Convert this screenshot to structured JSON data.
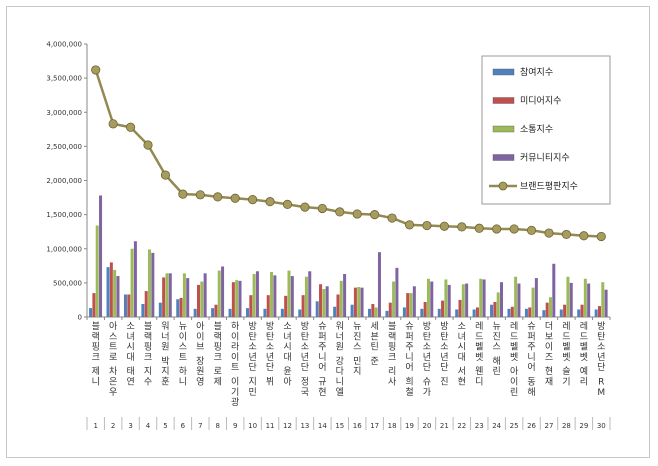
{
  "chart_data": {
    "type": "bar",
    "ylim": [
      0,
      4000000
    ],
    "yticks": [
      0,
      500000,
      1000000,
      1500000,
      2000000,
      2500000,
      3000000,
      3500000,
      4000000
    ],
    "ytick_labels": [
      "0",
      "500,000",
      "1,000,000",
      "1,500,000",
      "2,000,000",
      "2,500,000",
      "3,000,000",
      "3,500,000",
      "4,000,000"
    ],
    "legend_position": "top-right",
    "grid": false,
    "categories": [
      "블랙핑크 제니",
      "아스트로 차은우",
      "소녀시대 태연",
      "블랙핑크 지수",
      "워너원 박지훈",
      "뉴이스트 하니",
      "아이브 장원영",
      "블랙핑크 로제",
      "하이라이트 이기광",
      "방탄소년단 지민",
      "방탄소년단 뷔",
      "소녀시대 윤아",
      "방탄소년단 정국",
      "슈퍼주니어 규현",
      "워너원 강다니엘",
      "뉴진스 민지",
      "세븐틴 준",
      "블랙핑크 리사",
      "슈퍼주니어 희철",
      "방탄소년단 슈가",
      "방탄소년단 진",
      "소녀시대 서현",
      "레드벨벳 웬디",
      "뉴진스 해린",
      "레드벨벳 아이린",
      "슈퍼주니어 동해",
      "더보이즈 현재",
      "레드벨벳 슬기",
      "레드벨벳 예리",
      "방탄소년단 RM"
    ],
    "rank_labels": [
      "1",
      "2",
      "3",
      "4",
      "5",
      "6",
      "7",
      "8",
      "9",
      "10",
      "11",
      "12",
      "13",
      "14",
      "15",
      "16",
      "17",
      "18",
      "19",
      "20",
      "21",
      "22",
      "23",
      "24",
      "25",
      "26",
      "27",
      "28",
      "29",
      "30"
    ],
    "series": [
      {
        "name": "참여지수",
        "kind": "bar",
        "color": "#4f81bd",
        "values": [
          130000,
          730000,
          330000,
          190000,
          210000,
          260000,
          120000,
          130000,
          120000,
          130000,
          120000,
          120000,
          110000,
          230000,
          150000,
          180000,
          120000,
          90000,
          140000,
          120000,
          120000,
          110000,
          110000,
          180000,
          120000,
          120000,
          100000,
          110000,
          110000,
          110000
        ]
      },
      {
        "name": "미디어지수",
        "kind": "bar",
        "color": "#c0504d",
        "values": [
          350000,
          800000,
          330000,
          380000,
          580000,
          280000,
          470000,
          180000,
          510000,
          320000,
          320000,
          310000,
          320000,
          480000,
          330000,
          430000,
          190000,
          210000,
          350000,
          220000,
          240000,
          250000,
          140000,
          220000,
          150000,
          140000,
          210000,
          180000,
          180000,
          160000
        ]
      },
      {
        "name": "소통지수",
        "kind": "bar",
        "color": "#9bbb59",
        "values": [
          1340000,
          690000,
          1000000,
          990000,
          640000,
          640000,
          520000,
          680000,
          540000,
          630000,
          660000,
          680000,
          590000,
          410000,
          530000,
          440000,
          140000,
          520000,
          350000,
          560000,
          550000,
          480000,
          560000,
          360000,
          590000,
          430000,
          290000,
          590000,
          560000,
          510000
        ]
      },
      {
        "name": "커뮤니티지수",
        "kind": "bar",
        "color": "#8064a2",
        "values": [
          1780000,
          600000,
          1110000,
          940000,
          640000,
          570000,
          640000,
          740000,
          530000,
          670000,
          610000,
          600000,
          670000,
          450000,
          630000,
          430000,
          950000,
          720000,
          450000,
          520000,
          470000,
          490000,
          550000,
          510000,
          490000,
          570000,
          780000,
          500000,
          490000,
          400000
        ]
      },
      {
        "name": "브랜드평판지수",
        "kind": "line",
        "color": "#938953",
        "values": [
          3620000,
          2830000,
          2780000,
          2520000,
          2080000,
          1800000,
          1790000,
          1760000,
          1740000,
          1720000,
          1690000,
          1650000,
          1610000,
          1590000,
          1540000,
          1510000,
          1500000,
          1450000,
          1350000,
          1340000,
          1330000,
          1320000,
          1300000,
          1290000,
          1290000,
          1270000,
          1230000,
          1210000,
          1190000,
          1180000
        ]
      }
    ]
  }
}
